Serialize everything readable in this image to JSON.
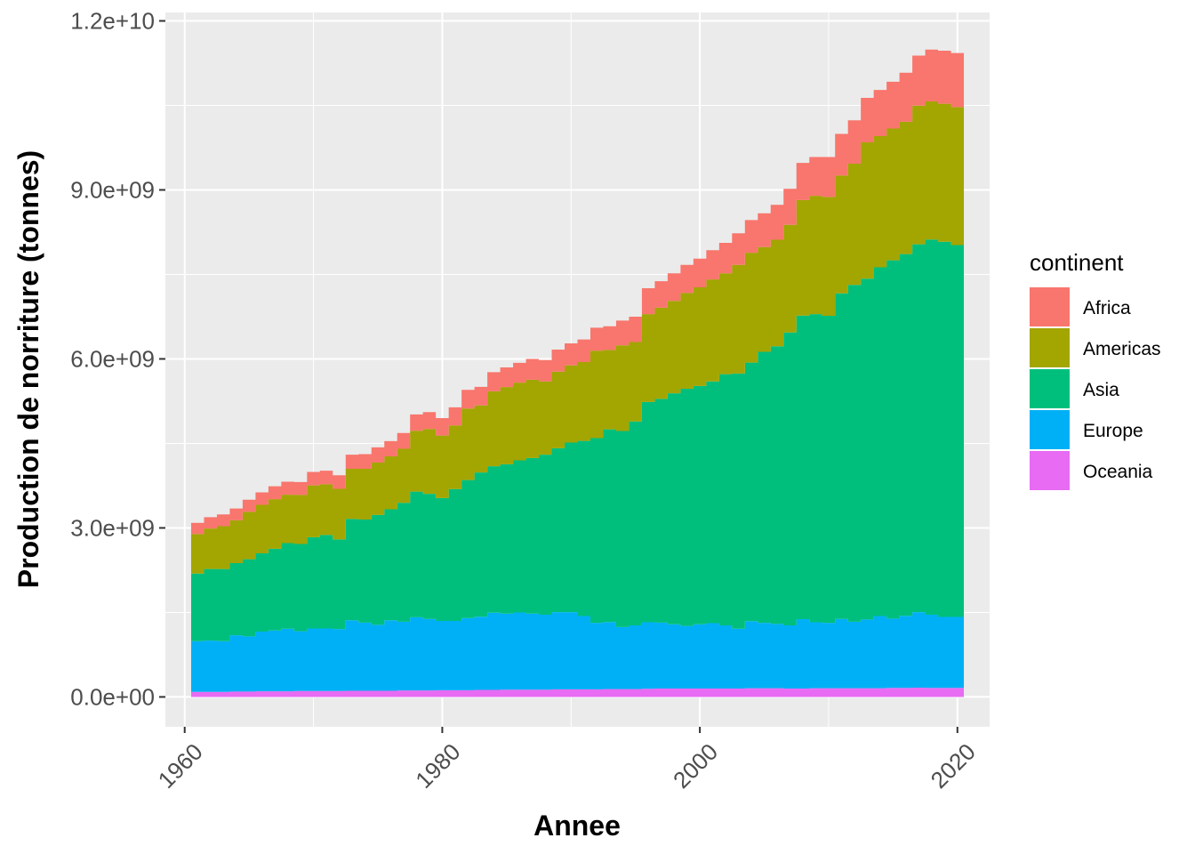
{
  "chart_data": {
    "type": "area",
    "stacked": true,
    "xlabel": "Annee",
    "ylabel": "Production de norriture (tonnes)",
    "xlim": [
      1958.5,
      2022.5
    ],
    "ylim": [
      -530000000,
      12150000000
    ],
    "x_ticks": [
      1960,
      1980,
      2000,
      2020
    ],
    "x_tick_labels": [
      "1960",
      "1980",
      "2000",
      "2020"
    ],
    "y_ticks": [
      0,
      3000000000,
      6000000000,
      9000000000,
      12000000000
    ],
    "y_tick_labels": [
      "0.0e+00",
      "3.0e+09",
      "6.0e+09",
      "9.0e+09",
      "1.2e+10"
    ],
    "grid": true,
    "panel_background": "#EBEBEB",
    "legend_title": "continent",
    "legend_position": "right",
    "x": [
      1961,
      1962,
      1963,
      1964,
      1965,
      1966,
      1967,
      1968,
      1969,
      1970,
      1971,
      1972,
      1973,
      1974,
      1975,
      1976,
      1977,
      1978,
      1979,
      1980,
      1981,
      1982,
      1983,
      1984,
      1985,
      1986,
      1987,
      1988,
      1989,
      1990,
      1991,
      1992,
      1993,
      1994,
      1995,
      1996,
      1997,
      1998,
      1999,
      2000,
      2001,
      2002,
      2003,
      2004,
      2005,
      2006,
      2007,
      2008,
      2009,
      2010,
      2011,
      2012,
      2013,
      2014,
      2015,
      2016,
      2017,
      2018,
      2019,
      2020
    ],
    "series": [
      {
        "name": "Oceania",
        "color": "#E76BF3",
        "values": [
          90000000,
          90000000,
          90000000,
          95000000,
          95000000,
          100000000,
          100000000,
          100000000,
          105000000,
          105000000,
          105000000,
          105000000,
          110000000,
          110000000,
          110000000,
          110000000,
          115000000,
          115000000,
          115000000,
          120000000,
          120000000,
          120000000,
          125000000,
          125000000,
          130000000,
          130000000,
          130000000,
          130000000,
          135000000,
          135000000,
          135000000,
          135000000,
          140000000,
          140000000,
          140000000,
          145000000,
          150000000,
          150000000,
          150000000,
          150000000,
          150000000,
          150000000,
          150000000,
          155000000,
          155000000,
          155000000,
          150000000,
          150000000,
          155000000,
          155000000,
          155000000,
          155000000,
          155000000,
          155000000,
          160000000,
          160000000,
          165000000,
          160000000,
          160000000,
          160000000
        ]
      },
      {
        "name": "Europe",
        "color": "#00B0F6",
        "values": [
          900000000,
          910000000,
          900000000,
          1000000000,
          980000000,
          1060000000,
          1080000000,
          1110000000,
          1060000000,
          1110000000,
          1110000000,
          1100000000,
          1250000000,
          1210000000,
          1170000000,
          1250000000,
          1220000000,
          1300000000,
          1270000000,
          1230000000,
          1230000000,
          1280000000,
          1300000000,
          1370000000,
          1350000000,
          1370000000,
          1350000000,
          1330000000,
          1370000000,
          1370000000,
          1300000000,
          1180000000,
          1190000000,
          1100000000,
          1130000000,
          1180000000,
          1170000000,
          1140000000,
          1110000000,
          1140000000,
          1160000000,
          1120000000,
          1060000000,
          1190000000,
          1160000000,
          1140000000,
          1120000000,
          1230000000,
          1170000000,
          1160000000,
          1230000000,
          1180000000,
          1220000000,
          1280000000,
          1230000000,
          1280000000,
          1340000000,
          1300000000,
          1260000000,
          1260000000
        ]
      },
      {
        "name": "Asia",
        "color": "#00BF7D",
        "values": [
          1200000000,
          1270000000,
          1280000000,
          1280000000,
          1370000000,
          1390000000,
          1450000000,
          1520000000,
          1550000000,
          1620000000,
          1660000000,
          1590000000,
          1800000000,
          1830000000,
          1950000000,
          1970000000,
          2110000000,
          2230000000,
          2220000000,
          2180000000,
          2340000000,
          2450000000,
          2560000000,
          2600000000,
          2650000000,
          2700000000,
          2760000000,
          2840000000,
          2910000000,
          3010000000,
          3110000000,
          3280000000,
          3420000000,
          3480000000,
          3620000000,
          3910000000,
          3970000000,
          4100000000,
          4210000000,
          4230000000,
          4290000000,
          4460000000,
          4530000000,
          4590000000,
          4810000000,
          4930000000,
          5200000000,
          5390000000,
          5470000000,
          5450000000,
          5780000000,
          5980000000,
          6050000000,
          6190000000,
          6360000000,
          6420000000,
          6530000000,
          6660000000,
          6660000000,
          6600000000
        ]
      },
      {
        "name": "Americas",
        "color": "#A3A500",
        "values": [
          700000000,
          720000000,
          760000000,
          760000000,
          840000000,
          860000000,
          880000000,
          860000000,
          870000000,
          920000000,
          900000000,
          900000000,
          890000000,
          900000000,
          930000000,
          940000000,
          960000000,
          1080000000,
          1150000000,
          1110000000,
          1130000000,
          1270000000,
          1190000000,
          1330000000,
          1370000000,
          1380000000,
          1390000000,
          1300000000,
          1360000000,
          1370000000,
          1400000000,
          1550000000,
          1410000000,
          1520000000,
          1410000000,
          1560000000,
          1620000000,
          1640000000,
          1700000000,
          1750000000,
          1810000000,
          1790000000,
          1930000000,
          1950000000,
          1860000000,
          1890000000,
          1910000000,
          2050000000,
          2100000000,
          2110000000,
          2090000000,
          2150000000,
          2420000000,
          2330000000,
          2340000000,
          2350000000,
          2460000000,
          2450000000,
          2450000000,
          2450000000
        ]
      },
      {
        "name": "Africa",
        "color": "#F8766D",
        "values": [
          200000000,
          200000000,
          210000000,
          210000000,
          215000000,
          220000000,
          230000000,
          230000000,
          230000000,
          240000000,
          240000000,
          240000000,
          250000000,
          260000000,
          270000000,
          270000000,
          280000000,
          290000000,
          300000000,
          310000000,
          320000000,
          330000000,
          330000000,
          340000000,
          350000000,
          350000000,
          370000000,
          380000000,
          390000000,
          390000000,
          400000000,
          410000000,
          420000000,
          440000000,
          450000000,
          460000000,
          470000000,
          490000000,
          500000000,
          510000000,
          520000000,
          540000000,
          560000000,
          580000000,
          600000000,
          620000000,
          640000000,
          660000000,
          690000000,
          710000000,
          740000000,
          770000000,
          790000000,
          820000000,
          830000000,
          870000000,
          890000000,
          920000000,
          940000000,
          960000000
        ]
      }
    ]
  }
}
